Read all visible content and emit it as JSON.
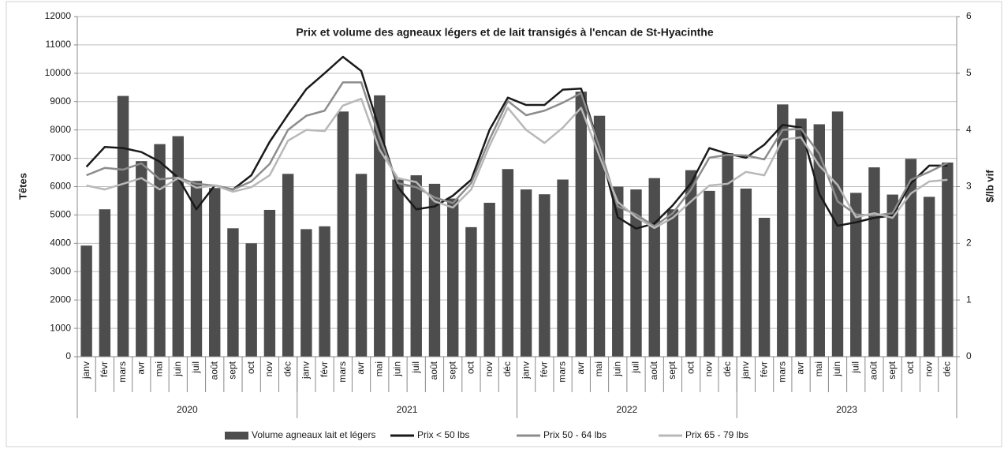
{
  "chart_data": {
    "type": "bar-line",
    "title": "Prix et volume des agneaux légers et de lait transigés à l'encan de St-Hyacinthe",
    "y_label": "Têtes",
    "y2_label": "$/lb vif",
    "categories": [
      "janv",
      "févr",
      "mars",
      "avr",
      "mai",
      "juin",
      "juil",
      "août",
      "sept",
      "oct",
      "nov",
      "déc",
      "janv",
      "févr",
      "mars",
      "avr",
      "mai",
      "juin",
      "juil",
      "août",
      "sept",
      "oct",
      "nov",
      "déc",
      "janv",
      "févr",
      "mars",
      "avr",
      "mai",
      "juin",
      "juil",
      "août",
      "sept",
      "oct",
      "nov",
      "déc",
      "janv",
      "févr",
      "mars",
      "avr",
      "mai",
      "juin",
      "juil",
      "août",
      "sept",
      "oct",
      "nov",
      "déc"
    ],
    "groups": [
      "2020",
      "2021",
      "2022",
      "2023"
    ],
    "ylim": [
      0,
      12000
    ],
    "yticks": [
      0,
      1000,
      2000,
      3000,
      4000,
      5000,
      6000,
      7000,
      8000,
      9000,
      10000,
      11000,
      12000
    ],
    "y2lim": [
      0,
      6
    ],
    "y2ticks": [
      0,
      1,
      2,
      3,
      4,
      5,
      6
    ],
    "grid": true,
    "legend": "bottom",
    "series": [
      {
        "name": "Volume agneaux lait et légers",
        "type": "bar",
        "color": "#4d4d4d",
        "values": [
          3920,
          5200,
          9200,
          6900,
          7500,
          7780,
          6200,
          5950,
          4530,
          4000,
          5180,
          6450,
          4500,
          4600,
          8650,
          6450,
          9220,
          6250,
          6400,
          6100,
          5580,
          4570,
          5430,
          6620,
          5900,
          5730,
          6250,
          9350,
          8500,
          6000,
          5900,
          6300,
          5200,
          6580,
          5850,
          7180,
          5930,
          4900,
          8900,
          8400,
          8200,
          8650,
          5780,
          6680,
          5720,
          6980,
          5640,
          6850
        ]
      },
      {
        "name": "Prix < 50 lbs",
        "type": "line",
        "axis": "y2",
        "color": "#1a1a1a",
        "values": [
          3.35,
          3.7,
          3.68,
          3.61,
          3.44,
          3.16,
          2.6,
          3.02,
          2.95,
          3.2,
          3.79,
          4.27,
          4.72,
          5.0,
          5.29,
          5.04,
          4.0,
          2.99,
          2.6,
          2.65,
          2.84,
          3.12,
          4.0,
          4.57,
          4.44,
          4.44,
          4.71,
          4.73,
          3.7,
          2.46,
          2.26,
          2.35,
          2.67,
          3.06,
          3.68,
          3.58,
          3.51,
          3.74,
          4.09,
          4.04,
          2.87,
          2.31,
          2.37,
          2.45,
          2.49,
          3.06,
          3.37,
          3.37
        ]
      },
      {
        "name": "Prix 50 - 64 lbs",
        "type": "line",
        "axis": "y2",
        "color": "#8c8c8c",
        "values": [
          3.2,
          3.33,
          3.3,
          3.41,
          3.13,
          3.16,
          3.05,
          3.02,
          2.95,
          3.09,
          3.4,
          4.0,
          4.25,
          4.34,
          4.84,
          4.84,
          3.86,
          3.06,
          2.99,
          2.81,
          2.71,
          3.06,
          3.83,
          4.51,
          4.26,
          4.34,
          4.48,
          4.65,
          3.7,
          2.65,
          2.51,
          2.3,
          2.53,
          2.95,
          3.51,
          3.56,
          3.55,
          3.48,
          4.0,
          4.02,
          3.58,
          2.74,
          2.51,
          2.49,
          2.53,
          3.12,
          3.26,
          3.42
        ]
      },
      {
        "name": "Prix 65 - 79 lbs",
        "type": "line",
        "axis": "y2",
        "color": "#b8b8b8",
        "values": [
          3.02,
          2.95,
          3.05,
          3.15,
          2.95,
          3.15,
          2.98,
          3.02,
          2.91,
          2.99,
          3.2,
          3.81,
          4.0,
          3.98,
          4.43,
          4.55,
          3.65,
          3.15,
          3.08,
          2.74,
          2.63,
          2.95,
          3.72,
          4.39,
          4.0,
          3.77,
          4.04,
          4.39,
          3.54,
          2.73,
          2.46,
          2.27,
          2.45,
          2.74,
          3.02,
          3.05,
          3.26,
          3.2,
          3.83,
          3.87,
          3.37,
          3.03,
          2.46,
          2.53,
          2.45,
          2.88,
          3.09,
          3.12
        ]
      }
    ]
  }
}
